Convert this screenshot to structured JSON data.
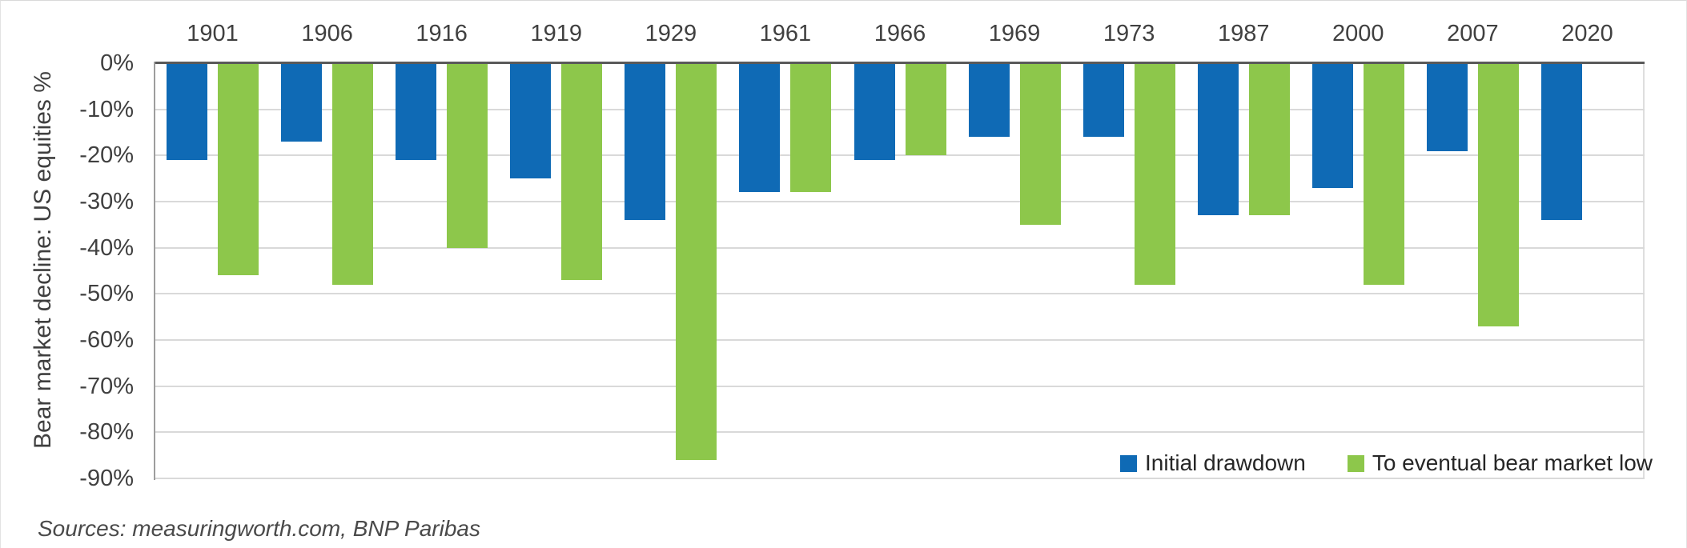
{
  "chart_data": {
    "type": "bar",
    "title": "",
    "ylabel": "Bear market decline: US equities %",
    "categories": [
      "1901",
      "1906",
      "1916",
      "1919",
      "1929",
      "1961",
      "1966",
      "1969",
      "1973",
      "1987",
      "2000",
      "2007",
      "2020"
    ],
    "series": [
      {
        "name": "Initial drawdown",
        "color": "#0f6ab5",
        "values": [
          -21,
          -17,
          -21,
          -25,
          -34,
          -28,
          -21,
          -16,
          -16,
          -33,
          -27,
          -19,
          -34
        ]
      },
      {
        "name": "To eventual bear market low",
        "color": "#8dc74b",
        "values": [
          -46,
          -48,
          -40,
          -47,
          -86,
          -28,
          -20,
          -35,
          -48,
          -33,
          -48,
          -57,
          null
        ]
      }
    ],
    "ylim": [
      -90,
      0
    ],
    "ytick_labels": [
      "0%",
      "-10%",
      "-20%",
      "-30%",
      "-40%",
      "-50%",
      "-60%",
      "-70%",
      "-80%",
      "-90%"
    ],
    "grid": "horizontal",
    "legend_position": "inside-bottom-right",
    "x_axis_position": "top"
  },
  "colors": {
    "grid": "#d9d9d9",
    "zero_line": "#595959",
    "axis_line": "#9d9d9d",
    "label_text": "#404040"
  },
  "footer": {
    "sources": "Sources: measuringworth.com, BNP Paribas"
  }
}
